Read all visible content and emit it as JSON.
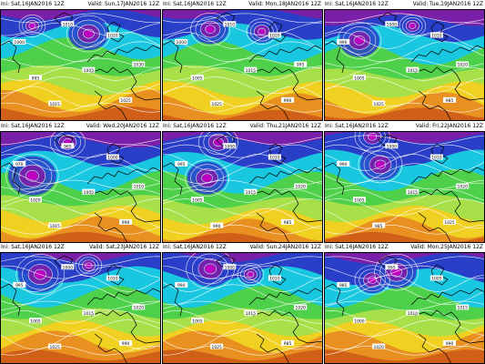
{
  "colors": {
    "purple": "#7a1fa8",
    "magenta": "#c000c0",
    "blue": "#2a3fc8",
    "cyan": "#19c8e0",
    "green": "#4fd04a",
    "lime": "#a8e04a",
    "yellow": "#f0d020",
    "orange": "#e89020",
    "deep_orange": "#d06018"
  },
  "icons": {
    "coastline": "coastline-overlay",
    "isobar": "isobar-contour"
  },
  "panels": [
    {
      "init": "Ini: Sat,16JAN2016 12Z",
      "valid": "Valid: Sun,17JAN2016 12Z",
      "labels": [
        "1000",
        "1010",
        "1020",
        "1030",
        "995",
        "1005",
        "1015",
        "1025"
      ]
    },
    {
      "init": "Ini: Sat,16JAN2016 12Z",
      "valid": "Valid: Mon,18JAN2016 12Z",
      "labels": [
        "1000",
        "1010",
        "1020",
        "995",
        "1005",
        "1015",
        "1025",
        "990"
      ]
    },
    {
      "init": "Ini: Sat,16JAN2016 12Z",
      "valid": "Valid: Tue,19JAN2016 12Z",
      "labels": [
        "990",
        "1000",
        "1010",
        "1020",
        "1005",
        "1015",
        "1025",
        "985"
      ]
    },
    {
      "init": "Ini: Sat,16JAN2016 12Z",
      "valid": "Valid: Wed,20JAN2016 12Z",
      "labels": [
        "970",
        "985",
        "1000",
        "1010",
        "1020",
        "1005",
        "1015",
        "990"
      ]
    },
    {
      "init": "Ini: Sat,16JAN2016 12Z",
      "valid": "Valid: Thu,21JAN2016 12Z",
      "labels": [
        "995",
        "1000",
        "1010",
        "1020",
        "1005",
        "1015",
        "990",
        "985"
      ]
    },
    {
      "init": "Ini: Sat,16JAN2016 12Z",
      "valid": "Valid: Fri,22JAN2016 12Z",
      "labels": [
        "990",
        "1000",
        "1010",
        "1020",
        "1005",
        "1015",
        "985",
        "1025"
      ]
    },
    {
      "init": "Ini: Sat,16JAN2016 12Z",
      "valid": "Valid: Sat,23JAN2016 12Z",
      "labels": [
        "995",
        "1000",
        "1010",
        "1020",
        "1005",
        "1015",
        "1025",
        "990"
      ]
    },
    {
      "init": "Ini: Sat,16JAN2016 12Z",
      "valid": "Valid: Sun,24JAN2016 12Z",
      "labels": [
        "990",
        "1000",
        "1010",
        "1020",
        "1005",
        "1015",
        "1025",
        "985"
      ]
    },
    {
      "init": "Ini: Sat,16JAN2016 12Z",
      "valid": "Valid: Mon,25JAN2016 12Z",
      "labels": [
        "985",
        "995",
        "1005",
        "1015",
        "1000",
        "1010",
        "1020",
        "990"
      ]
    }
  ]
}
